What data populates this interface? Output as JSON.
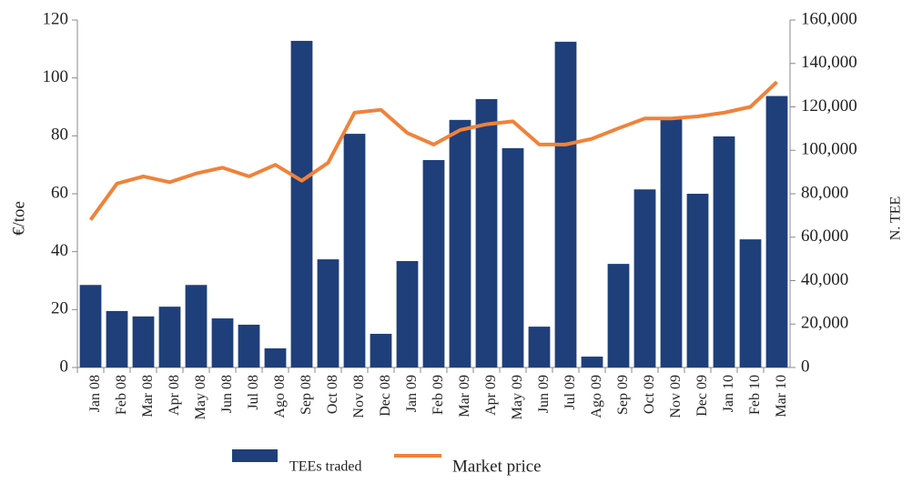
{
  "chart_data": {
    "type": "bar-line",
    "ylabel": "€/toe",
    "y2label": "N. TEE",
    "categories": [
      "Jan 08",
      "Feb 08",
      "Mar 08",
      "Apr 08",
      "May 08",
      "Jun 08",
      "Jul 08",
      "Ago 08",
      "Sep 08",
      "Oct 08",
      "Nov 08",
      "Dec 08",
      "Jan 09",
      "Feb 09",
      "Mar 09",
      "Apr 09",
      "May 09",
      "Jun 09",
      "Jul 09",
      "Ago 09",
      "Sep 09",
      "Oct 09",
      "Nov 09",
      "Dec 09",
      "Jan 10",
      "Feb 10",
      "Mar 10"
    ],
    "series": [
      {
        "name": "TEEs traded",
        "type": "bar",
        "axis": "y2",
        "color": "#1f3f7a",
        "values": [
          38000,
          26000,
          23500,
          28000,
          38000,
          22600,
          19700,
          8800,
          150400,
          49800,
          107600,
          15500,
          49000,
          95500,
          114000,
          123600,
          101000,
          18800,
          150000,
          5000,
          47700,
          82000,
          115000,
          80000,
          106400,
          59000,
          125000
        ]
      },
      {
        "name": "Market price",
        "type": "line",
        "axis": "y",
        "color": "#f0823a",
        "values": [
          51,
          63.5,
          66,
          64,
          67,
          69,
          66,
          70,
          64.5,
          70.7,
          88,
          89,
          81,
          77,
          82,
          84,
          85,
          77,
          77,
          79,
          82.6,
          86,
          86,
          86.7,
          88,
          90,
          98.6
        ]
      }
    ],
    "ylim": [
      0,
      120
    ],
    "yticks": [
      0,
      20,
      40,
      60,
      80,
      100,
      120
    ],
    "y2lim": [
      0,
      160000
    ],
    "y2ticks": [
      0,
      {
        "value": 20000,
        "label": "20,000"
      },
      {
        "value": 40000,
        "label": "40,000"
      },
      {
        "value": 60000,
        "label": "60,000"
      },
      {
        "value": 80000,
        "label": "80,000"
      },
      {
        "value": 100000,
        "label": "100,000"
      },
      {
        "value": 120000,
        "label": "120,000"
      },
      {
        "value": 140000,
        "label": "140,000"
      },
      {
        "value": 160000,
        "label": "160,000"
      }
    ]
  }
}
